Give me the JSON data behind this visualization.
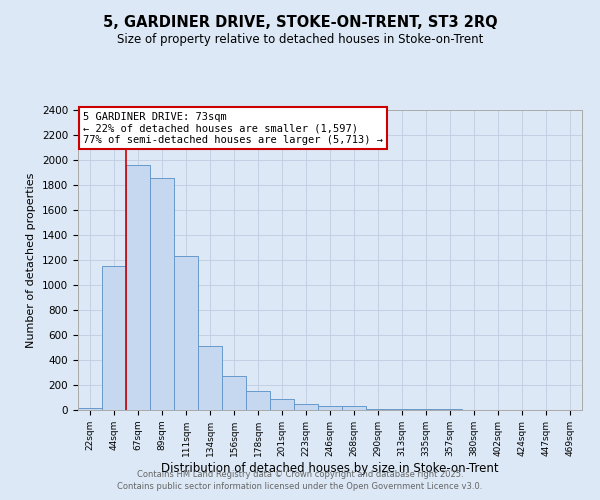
{
  "title_line1": "5, GARDINER DRIVE, STOKE-ON-TRENT, ST3 2RQ",
  "title_line2": "Size of property relative to detached houses in Stoke-on-Trent",
  "xlabel": "Distribution of detached houses by size in Stoke-on-Trent",
  "ylabel": "Number of detached properties",
  "categories": [
    "22sqm",
    "44sqm",
    "67sqm",
    "89sqm",
    "111sqm",
    "134sqm",
    "156sqm",
    "178sqm",
    "201sqm",
    "223sqm",
    "246sqm",
    "268sqm",
    "290sqm",
    "313sqm",
    "335sqm",
    "357sqm",
    "380sqm",
    "402sqm",
    "424sqm",
    "447sqm",
    "469sqm"
  ],
  "values": [
    20,
    1155,
    1960,
    1855,
    1235,
    515,
    275,
    155,
    85,
    45,
    30,
    30,
    10,
    10,
    5,
    5,
    2,
    2,
    2,
    2,
    2
  ],
  "bar_color": "#c5d8f0",
  "bar_edge_color": "#6699cc",
  "vline_x_idx": 2,
  "annotation_line1": "5 GARDINER DRIVE: 73sqm",
  "annotation_line2": "← 22% of detached houses are smaller (1,597)",
  "annotation_line3": "77% of semi-detached houses are larger (5,713) →",
  "annotation_box_color": "#ffffff",
  "annotation_border_color": "#cc0000",
  "vline_color": "#cc0000",
  "ylim": [
    0,
    2400
  ],
  "yticks": [
    0,
    200,
    400,
    600,
    800,
    1000,
    1200,
    1400,
    1600,
    1800,
    2000,
    2200,
    2400
  ],
  "grid_color": "#c0cce0",
  "background_color": "#dce8f5",
  "footer_line1": "Contains HM Land Registry data © Crown copyright and database right 2025.",
  "footer_line2": "Contains public sector information licensed under the Open Government Licence v3.0."
}
